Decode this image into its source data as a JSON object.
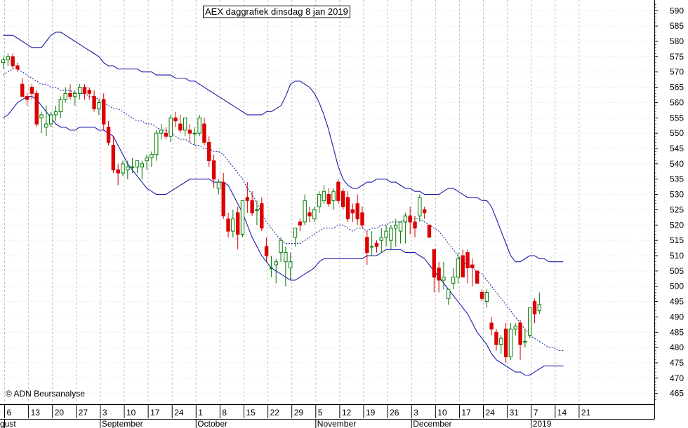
{
  "chart_data": {
    "type": "candlestick",
    "title": "AEX daggrafiek dinsdag 8 jan 2019",
    "credit": "© ADN Beursanalyse",
    "ylim": [
      461.5,
      593.5
    ],
    "yticks": [
      465,
      470,
      475,
      480,
      485,
      490,
      495,
      500,
      505,
      510,
      515,
      520,
      525,
      530,
      535,
      540,
      545,
      550,
      555,
      560,
      565,
      570,
      575,
      580,
      585,
      590
    ],
    "x_tick_labels": [
      "6",
      "13",
      "20",
      "27",
      "3",
      "10",
      "17",
      "24",
      "1",
      "8",
      "15",
      "22",
      "29",
      "5",
      "12",
      "19",
      "26",
      "3",
      "10",
      "17",
      "24",
      "31",
      "7",
      "14",
      "21"
    ],
    "month_labels": [
      {
        "label": "gust",
        "tick": 0
      },
      {
        "label": "September",
        "tick": 4
      },
      {
        "label": "October",
        "tick": 8
      },
      {
        "label": "November",
        "tick": 13
      },
      {
        "label": "December",
        "tick": 17
      },
      {
        "label": "2019",
        "tick": 22
      }
    ],
    "candles": [
      [
        573,
        575,
        571,
        574
      ],
      [
        574,
        576,
        572,
        575
      ],
      [
        575,
        576,
        571,
        572
      ],
      [
        572,
        573,
        570,
        571
      ],
      [
        566,
        568,
        562,
        562
      ],
      [
        562,
        563,
        559,
        561
      ],
      [
        565,
        566,
        561,
        563
      ],
      [
        563,
        564,
        552,
        553
      ],
      [
        555,
        557,
        550,
        556
      ],
      [
        552,
        559,
        549,
        553
      ],
      [
        553,
        557,
        552,
        556
      ],
      [
        556,
        559,
        554,
        557
      ],
      [
        557,
        562,
        555,
        561
      ],
      [
        561,
        565,
        560,
        563
      ],
      [
        563,
        566,
        561,
        562
      ],
      [
        562,
        564,
        559,
        563
      ],
      [
        563,
        566,
        561,
        565
      ],
      [
        565,
        566,
        561,
        563
      ],
      [
        564,
        565,
        561,
        563
      ],
      [
        562,
        564,
        557,
        558
      ],
      [
        558,
        561,
        556,
        560
      ],
      [
        561,
        563,
        551,
        553
      ],
      [
        552,
        554,
        546,
        547
      ],
      [
        546,
        549,
        537,
        538
      ],
      [
        538,
        540,
        533,
        537
      ],
      [
        537,
        541,
        536,
        540
      ],
      [
        538,
        541,
        535,
        539
      ],
      [
        539,
        542,
        537,
        539
      ],
      [
        539,
        541,
        537,
        541
      ],
      [
        539,
        541,
        535,
        540
      ],
      [
        541,
        543,
        538,
        542
      ],
      [
        542,
        544,
        539,
        543
      ],
      [
        543,
        551,
        541,
        550
      ],
      [
        550,
        553,
        548,
        551
      ],
      [
        550,
        552,
        548,
        549
      ],
      [
        549,
        556,
        547,
        555
      ],
      [
        555,
        557,
        552,
        554
      ],
      [
        553,
        556,
        550,
        551
      ],
      [
        551,
        555,
        549,
        555
      ],
      [
        551,
        553,
        547,
        550
      ],
      [
        550,
        552,
        546,
        550
      ],
      [
        550,
        556,
        549,
        555
      ],
      [
        553,
        555,
        546,
        547
      ],
      [
        547,
        549,
        539,
        541
      ],
      [
        541,
        543,
        532,
        535
      ],
      [
        532,
        535,
        530,
        534
      ],
      [
        534,
        537,
        522,
        523
      ],
      [
        522,
        524,
        516,
        518
      ],
      [
        518,
        525,
        516,
        522
      ],
      [
        524,
        526,
        512,
        517
      ],
      [
        517,
        528,
        516,
        528
      ],
      [
        529,
        534,
        524,
        528
      ],
      [
        528,
        531,
        523,
        524
      ],
      [
        525,
        528,
        520,
        525
      ],
      [
        527,
        529,
        518,
        519
      ],
      [
        513,
        516,
        508,
        510
      ],
      [
        506,
        510,
        503,
        506
      ],
      [
        507,
        509,
        501,
        508
      ],
      [
        511,
        516,
        508,
        515
      ],
      [
        508,
        513,
        500,
        511
      ],
      [
        506,
        511,
        502,
        508
      ],
      [
        516,
        519,
        513,
        519
      ],
      [
        521,
        522,
        518,
        520
      ],
      [
        521,
        530,
        520,
        528
      ],
      [
        524,
        526,
        521,
        523
      ],
      [
        522,
        526,
        521,
        525
      ],
      [
        526,
        531,
        524,
        530
      ],
      [
        528,
        533,
        527,
        531
      ],
      [
        530,
        532,
        526,
        527
      ],
      [
        528,
        532,
        525,
        531
      ],
      [
        534,
        535,
        527,
        528
      ],
      [
        531,
        532,
        525,
        526
      ],
      [
        529,
        531,
        521,
        522
      ],
      [
        525,
        527,
        521,
        524
      ],
      [
        527,
        530,
        520,
        522
      ],
      [
        524,
        526,
        519,
        520
      ],
      [
        516,
        518,
        507,
        511
      ],
      [
        513,
        518,
        510,
        513
      ],
      [
        514,
        515,
        511,
        513
      ],
      [
        515,
        519,
        511,
        516
      ],
      [
        516,
        520,
        513,
        518
      ],
      [
        515,
        520,
        512,
        519
      ],
      [
        519,
        522,
        513,
        520
      ],
      [
        518,
        520,
        514,
        521
      ],
      [
        521,
        524,
        514,
        523
      ],
      [
        523,
        526,
        517,
        521
      ],
      [
        521,
        523,
        516,
        519
      ],
      [
        523,
        530,
        521,
        529
      ],
      [
        525,
        526,
        522,
        524
      ],
      [
        520,
        520,
        516,
        516
      ],
      [
        512,
        512,
        498,
        503
      ],
      [
        506,
        508,
        498,
        502
      ],
      [
        502,
        508,
        499,
        503
      ],
      [
        496,
        499,
        494,
        499
      ],
      [
        501,
        506,
        499,
        503
      ],
      [
        503,
        511,
        501,
        509
      ],
      [
        510,
        512,
        503,
        503
      ],
      [
        511,
        512,
        501,
        506
      ],
      [
        507,
        509,
        500,
        506
      ],
      [
        505,
        505,
        501,
        501
      ],
      [
        498,
        499,
        495,
        496
      ],
      [
        495,
        499,
        493,
        498
      ],
      [
        488,
        490,
        484,
        486
      ],
      [
        485,
        486,
        479,
        481
      ],
      [
        481,
        484,
        478,
        483
      ],
      [
        486,
        488,
        475,
        477
      ],
      [
        477,
        488,
        476,
        486
      ],
      [
        486,
        488,
        484,
        487
      ],
      [
        488,
        489,
        476,
        481
      ],
      [
        482,
        486,
        480,
        482
      ],
      [
        484,
        493,
        483,
        493
      ],
      [
        495,
        496,
        488,
        491
      ],
      [
        492,
        498,
        491,
        494
      ]
    ],
    "middle_band": [
      569,
      570,
      571,
      571,
      570,
      569,
      568,
      567,
      566,
      566,
      565,
      565,
      564,
      564,
      564,
      563,
      563,
      563,
      562,
      562,
      561,
      560,
      559,
      558,
      558,
      557,
      556,
      555,
      554,
      554,
      553,
      553,
      552,
      551,
      551,
      550,
      549,
      548,
      548,
      547,
      546,
      546,
      545,
      545,
      544,
      544,
      543,
      541,
      539,
      537,
      535,
      532,
      530,
      527,
      524,
      521,
      519,
      517,
      515,
      514,
      514,
      514,
      514,
      515,
      516,
      517,
      518,
      519,
      519,
      519,
      520,
      520,
      519,
      518,
      519,
      519,
      518,
      519,
      519,
      520,
      520,
      521,
      521,
      521,
      522,
      522,
      522,
      522,
      521,
      520,
      519,
      518,
      516,
      514,
      512,
      510,
      508,
      507,
      506,
      505,
      504,
      502,
      500,
      498,
      496,
      494,
      492,
      490,
      488,
      486,
      484,
      483,
      482,
      481,
      480,
      480,
      479,
      479
    ],
    "upper_band": [
      582,
      582,
      582,
      581,
      580,
      579,
      578,
      578,
      578,
      580,
      582,
      583,
      583,
      582,
      581,
      580,
      579,
      578,
      577,
      576,
      575,
      573,
      572,
      572,
      571,
      571,
      571,
      571,
      571,
      570,
      570,
      570,
      569,
      569,
      569,
      569,
      568,
      568,
      568,
      567,
      567,
      566,
      565,
      564,
      563,
      562,
      561,
      560,
      559,
      558,
      557,
      556,
      556,
      556,
      556,
      557,
      557,
      558,
      559,
      562,
      566,
      567,
      567,
      566,
      565,
      563,
      560,
      556,
      551,
      545,
      539,
      535,
      533,
      532,
      532,
      533,
      534,
      534,
      535,
      535,
      535,
      534,
      534,
      533,
      532,
      532,
      531,
      531,
      530,
      530,
      530,
      530,
      531,
      532,
      532,
      531,
      530,
      529,
      529,
      529,
      528,
      528,
      526,
      522,
      518,
      514,
      510,
      508,
      508,
      509,
      510,
      510,
      509,
      509,
      508,
      508,
      508,
      508
    ],
    "lower_band": [
      555,
      556,
      558,
      560,
      561,
      562,
      562,
      561,
      559,
      557,
      555,
      553,
      552,
      552,
      551,
      551,
      552,
      552,
      552,
      552,
      551,
      551,
      550,
      549,
      546,
      543,
      540,
      538,
      536,
      534,
      532,
      531,
      530,
      530,
      530,
      531,
      532,
      533,
      534,
      535,
      535,
      535,
      535,
      535,
      534,
      534,
      534,
      533,
      530,
      527,
      524,
      520,
      516,
      513,
      510,
      508,
      506,
      505,
      504,
      503,
      502,
      502,
      503,
      504,
      505,
      506,
      508,
      509,
      509,
      509,
      509,
      509,
      509,
      509,
      509,
      509,
      510,
      510,
      510,
      511,
      512,
      512,
      512,
      512,
      511,
      511,
      511,
      510,
      509,
      507,
      505,
      503,
      501,
      499,
      497,
      495,
      493,
      491,
      488,
      485,
      483,
      481,
      478,
      476,
      475,
      474,
      473,
      472,
      472,
      471,
      471,
      472,
      473,
      474,
      474,
      474,
      474,
      474
    ]
  }
}
